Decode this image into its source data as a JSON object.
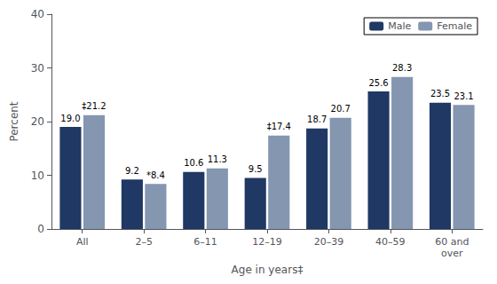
{
  "chart_data": {
    "type": "bar",
    "xlabel": "Age in years‡",
    "ylabel": "Percent",
    "categories": [
      "All",
      "2–5",
      "6–11",
      "12–19",
      "20–39",
      "40–59",
      "60 and\nover"
    ],
    "series": [
      {
        "name": "Male",
        "color": "#1F3864",
        "values": [
          19.0,
          9.2,
          10.6,
          9.5,
          18.7,
          25.6,
          23.5
        ],
        "value_labels": [
          "19.0",
          "9.2",
          "10.6",
          "9.5",
          "18.7",
          "25.6",
          "23.5"
        ]
      },
      {
        "name": "Female",
        "color": "#8496B0",
        "values": [
          21.2,
          8.4,
          11.3,
          17.4,
          20.7,
          28.3,
          23.1
        ],
        "value_labels": [
          "‡21.2",
          "*8.4",
          "11.3",
          "‡17.4",
          "20.7",
          "28.3",
          "23.1"
        ]
      }
    ],
    "ylim": [
      0,
      40
    ],
    "yticks": [
      0,
      10,
      20,
      30,
      40
    ],
    "grid": false,
    "legend": "upper right",
    "data_labels": true
  }
}
